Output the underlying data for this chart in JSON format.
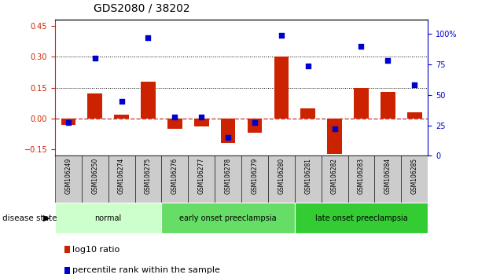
{
  "title": "GDS2080 / 38202",
  "samples": [
    "GSM106249",
    "GSM106250",
    "GSM106274",
    "GSM106275",
    "GSM106276",
    "GSM106277",
    "GSM106278",
    "GSM106279",
    "GSM106280",
    "GSM106281",
    "GSM106282",
    "GSM106283",
    "GSM106284",
    "GSM106285"
  ],
  "log10_ratio": [
    -0.03,
    0.12,
    0.02,
    0.18,
    -0.05,
    -0.04,
    -0.12,
    -0.07,
    0.3,
    0.05,
    -0.17,
    0.15,
    0.13,
    0.03
  ],
  "percentile_rank": [
    27,
    80,
    45,
    97,
    32,
    32,
    15,
    27,
    99,
    74,
    22,
    90,
    78,
    58
  ],
  "groups": [
    {
      "label": "normal",
      "start": 0,
      "end": 4,
      "color": "#ccffcc"
    },
    {
      "label": "early onset preeclampsia",
      "start": 4,
      "end": 9,
      "color": "#66dd66"
    },
    {
      "label": "late onset preeclampsia",
      "start": 9,
      "end": 14,
      "color": "#33cc33"
    }
  ],
  "ylim_left": [
    -0.18,
    0.48
  ],
  "ylim_right": [
    0,
    112
  ],
  "yticks_left": [
    -0.15,
    0.0,
    0.15,
    0.3,
    0.45
  ],
  "yticks_right": [
    0,
    25,
    50,
    75,
    100
  ],
  "hlines": [
    0.15,
    0.3
  ],
  "bar_color": "#cc2200",
  "dot_color": "#0000cc",
  "zero_line_color": "#cc4444",
  "title_fontsize": 10,
  "tick_fontsize": 7,
  "label_fontsize": 8,
  "bar_width": 0.55,
  "background_color": "#ffffff"
}
